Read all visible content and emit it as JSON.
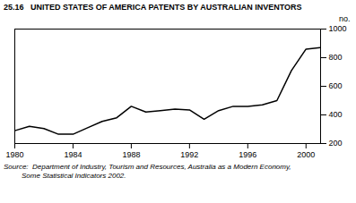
{
  "chart_data": {
    "type": "line",
    "title": "25.16   UNITED STATES OF AMERICA PATENTS BY AUSTRALIAN INVENTORS",
    "ylabel": "no.",
    "annotations": [
      "Source:  Department of Industry, Tourism and Resources, Australia as a Modern Economy,",
      "         Some Statistical Indicators 2002."
    ],
    "x": [
      1980,
      1981,
      1982,
      1983,
      1984,
      1985,
      1986,
      1987,
      1988,
      1989,
      1990,
      1991,
      1992,
      1993,
      1994,
      1995,
      1996,
      1997,
      1998,
      1999,
      2000,
      2001
    ],
    "values": [
      290,
      320,
      305,
      265,
      265,
      310,
      355,
      380,
      460,
      420,
      430,
      440,
      435,
      370,
      430,
      460,
      460,
      470,
      500,
      710,
      860,
      870
    ],
    "color": "#000000",
    "xlim": [
      1980,
      2001
    ],
    "xticks": [
      1980,
      1984,
      1988,
      1992,
      1996,
      2000
    ],
    "ylim": [
      200,
      1000
    ],
    "yticks": [
      200,
      400,
      600,
      800,
      1000
    ],
    "grid": false
  }
}
